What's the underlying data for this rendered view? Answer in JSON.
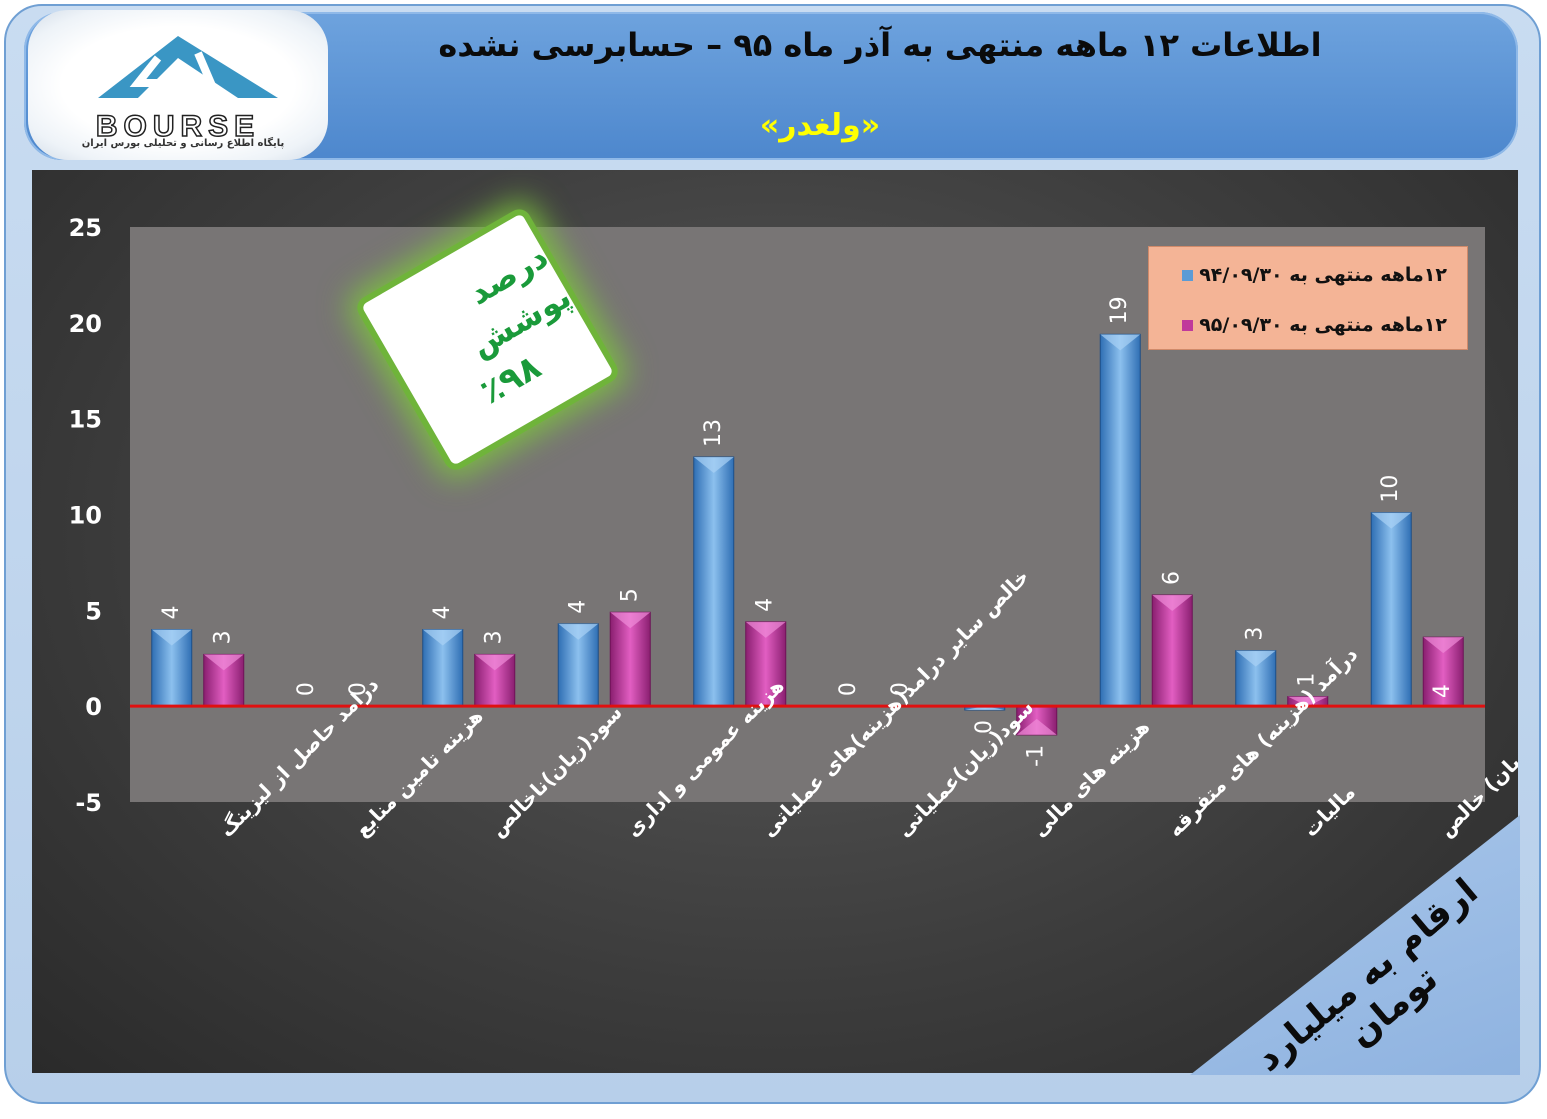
{
  "header": {
    "title": "اطلاعات ۱۲ ماهه منتهی به آذر ماه ۹۵ – حسابرسی نشده",
    "subtitle": "«ولغدر»"
  },
  "logo": {
    "text": "BOURSE",
    "caption": "پایگاه اطلاع رسانی و تحلیلی بورس ایران"
  },
  "badge": {
    "label": "درصد پوشش",
    "value": "٪۹۸"
  },
  "footer_note": "ارقام به میلیارد تومان",
  "colors": {
    "series1": "#5b9bd5",
    "series2": "#c0399b",
    "zero_line": "#e01010",
    "legend_bg": "#f4b496",
    "badge_glow": "#6fb43a"
  },
  "chart_data": {
    "type": "bar",
    "categories": [
      "درامد حاصل از لیزینگ",
      "هزینه تامین منابع",
      "سود(زیان)ناخالص",
      "هزینه عمومی و اداری",
      "خالص سایر درامد(هزینه)های عملیاتی",
      "سود(زیان)عملیاتی",
      "هزینه های مالی",
      "درآمد (هزینه) های متفرقه",
      "مالیات",
      "سود(زیان) خالص"
    ],
    "series": [
      {
        "name": "۱۲ماهه منتهی به ۹۴/۰۹/۳۰",
        "values": [
          4,
          0,
          4,
          4.3,
          13,
          0,
          -0.2,
          19.4,
          2.9,
          10.1
        ],
        "labels": [
          "4",
          "0",
          "4",
          "4",
          "13",
          "0",
          "0",
          "19",
          "3",
          "10"
        ]
      },
      {
        "name": "۱۲ماهه منتهی به ۹۵/۰۹/۳۰",
        "values": [
          2.7,
          0,
          2.7,
          4.9,
          4.4,
          0,
          -1.5,
          5.8,
          0.5,
          3.6
        ],
        "labels": [
          "3",
          "0",
          "3",
          "5",
          "4",
          "0",
          "-1",
          "6",
          "1",
          "4"
        ]
      }
    ],
    "yticks": [
      "25",
      "20",
      "15",
      "10",
      "5",
      "0",
      "-5"
    ],
    "ylim": [
      -5,
      25
    ],
    "legend_position": "top-right",
    "grid": false
  }
}
